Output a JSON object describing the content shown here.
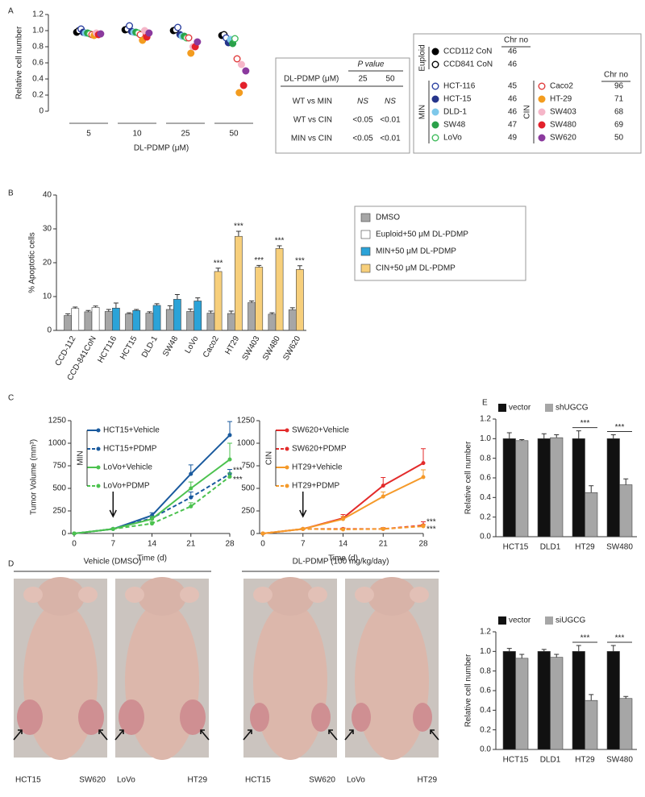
{
  "chart_data": [
    {
      "type": "dot",
      "label": "A",
      "ylabel": "Relative cell number",
      "xlabel": "DL-PDMP (μM)",
      "categories": [
        5,
        10,
        25,
        50
      ],
      "ylim": [
        0,
        1.2
      ],
      "yticks": [
        0,
        0.2,
        0.4,
        0.6,
        0.8,
        {
          "value": 1,
          "label": "1.0"
        },
        1.2
      ],
      "groups": [
        "Euploid",
        "MIN",
        "CIN"
      ],
      "chr_no_label": "Chr no",
      "series": [
        {
          "name": "CCD112 CoN",
          "group": 0,
          "color": "#000000",
          "marker": "filled",
          "chr_no": 46,
          "values": [
            0.98,
            1.01,
            1.0,
            0.94
          ]
        },
        {
          "name": "CCD841 CoN",
          "group": 0,
          "color": "#000000",
          "marker": "open",
          "chr_no": 46,
          "values": [
            1.0,
            1.02,
            1.01,
            0.95
          ]
        },
        {
          "name": "HCT-116",
          "group": 1,
          "color": "#2a3fa0",
          "marker": "open",
          "chr_no": 45,
          "values": [
            1.02,
            1.06,
            1.04,
            0.91
          ]
        },
        {
          "name": "HCT-15",
          "group": 1,
          "color": "#26358b",
          "marker": "filled",
          "chr_no": 46,
          "values": [
            0.98,
            0.99,
            0.95,
            0.85
          ]
        },
        {
          "name": "DLD-1",
          "group": 1,
          "color": "#7ec8ea",
          "marker": "filled",
          "chr_no": 46,
          "values": [
            0.97,
            0.98,
            0.93,
            0.89
          ]
        },
        {
          "name": "SW48",
          "group": 1,
          "color": "#2aa14a",
          "marker": "filled",
          "chr_no": 47,
          "values": [
            0.97,
            0.98,
            0.93,
            0.84
          ]
        },
        {
          "name": "LoVo",
          "group": 1,
          "color": "#3dbb5a",
          "marker": "open",
          "chr_no": 49,
          "values": [
            0.96,
            0.97,
            0.91,
            0.9
          ]
        },
        {
          "name": "Caco2",
          "group": 2,
          "color": "#e03a3a",
          "marker": "open",
          "chr_no": 96,
          "values": [
            0.95,
            0.95,
            0.91,
            0.65
          ]
        },
        {
          "name": "HT-29",
          "group": 2,
          "color": "#f39c1f",
          "marker": "filled",
          "chr_no": 71,
          "values": [
            0.94,
            0.88,
            0.72,
            0.23
          ]
        },
        {
          "name": "SW403",
          "group": 2,
          "color": "#f5b6c8",
          "marker": "filled",
          "chr_no": 68,
          "values": [
            0.97,
            1.0,
            0.8,
            0.58
          ]
        },
        {
          "name": "SW480",
          "group": 2,
          "color": "#e3212b",
          "marker": "filled",
          "chr_no": 69,
          "values": [
            0.95,
            0.92,
            0.8,
            0.32
          ]
        },
        {
          "name": "SW620",
          "group": 2,
          "color": "#8b3a9e",
          "marker": "filled",
          "chr_no": 50,
          "values": [
            0.96,
            0.97,
            0.86,
            0.5
          ]
        }
      ]
    },
    {
      "type": "bar",
      "label": "B",
      "ylabel": "% Apoptotic cells",
      "legend": "right",
      "xtick_rotation": 60,
      "categories": [
        "CCD-112",
        "CCD-841CoN",
        "HCT116",
        "HCT15",
        "DLD-1",
        "SW48",
        "LoVo",
        "Caco2",
        "HT29",
        "SW403",
        "SW480",
        "SW620"
      ],
      "ylim": [
        0,
        40
      ],
      "yticks": [
        0,
        10,
        20,
        30,
        40
      ],
      "significance": [
        null,
        null,
        null,
        null,
        null,
        null,
        null,
        "***",
        "***",
        "***",
        "***",
        "***"
      ],
      "series": [
        {
          "name": "DMSO",
          "color": "#a6a6a6",
          "values": [
            4.4,
            5.5,
            5.6,
            4.9,
            5.1,
            6.2,
            5.6,
            5.1,
            5.0,
            8.2,
            4.8,
            6.1
          ],
          "errors": [
            0.5,
            0.4,
            0.6,
            0.3,
            0.4,
            1.1,
            0.7,
            0.6,
            0.7,
            0.5,
            0.4,
            0.6
          ]
        },
        {
          "name": "Euploid+50 μM DL-PDMP",
          "color": "#ffffff",
          "values": [
            6.5,
            6.8,
            null,
            null,
            null,
            null,
            null,
            null,
            null,
            null,
            null,
            null
          ],
          "errors": [
            0.4,
            0.4,
            null,
            null,
            null,
            null,
            null,
            null,
            null,
            null,
            null,
            null
          ]
        },
        {
          "name": "MIN+50 μM DL-PDMP",
          "color": "#2ba3d8",
          "values": [
            null,
            null,
            6.6,
            5.9,
            7.4,
            9.2,
            8.7,
            null,
            null,
            null,
            null,
            null
          ],
          "errors": [
            null,
            null,
            1.5,
            0.3,
            0.5,
            1.4,
            0.9,
            null,
            null,
            null,
            null,
            null
          ]
        },
        {
          "name": "CIN+50 μM DL-PDMP",
          "color": "#f7cf7b",
          "values": [
            null,
            null,
            null,
            null,
            null,
            null,
            null,
            17.4,
            27.8,
            18.7,
            24.2,
            18.0
          ],
          "errors": [
            null,
            null,
            null,
            null,
            null,
            null,
            null,
            1.0,
            1.5,
            0.5,
            0.8,
            1.1
          ]
        }
      ]
    },
    {
      "type": "line",
      "label": "C",
      "ylabel": "Tumor Volume (mm³)",
      "xlabel": "Time (d)",
      "group": "MIN",
      "group_color": "#2a4fa0",
      "arrow_at": 7,
      "x": [
        0,
        7,
        14,
        21,
        28
      ],
      "xlim": [
        0,
        28
      ],
      "xticks": [
        0,
        7,
        14,
        21,
        28
      ],
      "ylim": [
        0,
        1250
      ],
      "yticks": [
        0,
        250,
        500,
        750,
        1000,
        1250
      ],
      "series": [
        {
          "name": "HCT15+Vehicle",
          "color": "#1a5a9e",
          "dashed": false,
          "values": [
            0,
            50,
            200,
            660,
            1090
          ],
          "errors": [
            0,
            5,
            30,
            100,
            150
          ]
        },
        {
          "name": "HCT15+PDMP",
          "color": "#1a5a9e",
          "dashed": true,
          "annotation": "***",
          "values": [
            0,
            50,
            170,
            400,
            660
          ],
          "errors": [
            0,
            5,
            25,
            60,
            50
          ]
        },
        {
          "name": "LoVo+Vehicle",
          "color": "#4cc24f",
          "dashed": false,
          "values": [
            0,
            50,
            160,
            500,
            820
          ],
          "errors": [
            0,
            5,
            30,
            70,
            180
          ]
        },
        {
          "name": "LoVo+PDMP",
          "color": "#4cc24f",
          "dashed": true,
          "annotation": "***",
          "values": [
            0,
            50,
            110,
            300,
            630
          ],
          "errors": [
            0,
            5,
            20,
            40,
            40
          ]
        }
      ]
    },
    {
      "type": "line",
      "xlabel": "Time (d)",
      "group": "CIN",
      "group_color": "#e32b2b",
      "arrow_at": 7,
      "x": [
        0,
        7,
        14,
        21,
        28
      ],
      "xlim": [
        0,
        28
      ],
      "xticks": [
        0,
        7,
        14,
        21,
        28
      ],
      "ylim": [
        0,
        1250
      ],
      "yticks": [
        0,
        250,
        500,
        750,
        1000,
        1250
      ],
      "series": [
        {
          "name": "SW620+Vehicle",
          "color": "#e32b2b",
          "dashed": false,
          "values": [
            0,
            50,
            170,
            530,
            780
          ],
          "errors": [
            0,
            5,
            40,
            90,
            160
          ]
        },
        {
          "name": "SW620+PDMP",
          "color": "#e32b2b",
          "dashed": true,
          "annotation": "***",
          "values": [
            0,
            50,
            50,
            50,
            90
          ],
          "errors": [
            0,
            5,
            10,
            15,
            40
          ]
        },
        {
          "name": "HT29+Vehicle",
          "color": "#f59a2a",
          "dashed": false,
          "values": [
            0,
            50,
            160,
            410,
            625
          ],
          "errors": [
            0,
            5,
            30,
            50,
            80
          ]
        },
        {
          "name": "HT29+PDMP",
          "color": "#f59a2a",
          "dashed": true,
          "annotation": "***",
          "values": [
            0,
            50,
            45,
            50,
            80
          ],
          "errors": [
            0,
            5,
            10,
            10,
            20
          ]
        }
      ]
    },
    {
      "type": "bar",
      "label": "E",
      "ylabel": "Relative cell number",
      "legend": "top",
      "significance_bracket": true,
      "categories": [
        "HCT15",
        "DLD1",
        "HT29",
        "SW480"
      ],
      "ylim": [
        0,
        1.2
      ],
      "yticks": [
        {
          "value": 0,
          "label": "0.0"
        },
        0.2,
        0.4,
        0.6,
        0.8,
        {
          "value": 1,
          "label": "1.0"
        },
        1.2
      ],
      "significance": [
        null,
        null,
        "***",
        "***"
      ],
      "series": [
        {
          "name": "vector",
          "color": "#111111",
          "values": [
            1.0,
            1.0,
            1.0,
            1.0
          ],
          "errors": [
            0.06,
            0.05,
            0.08,
            0.04
          ]
        },
        {
          "name": "shUGCG",
          "color": "#a6a6a6",
          "values": [
            0.98,
            1.01,
            0.45,
            0.53
          ],
          "errors": [
            0.01,
            0.03,
            0.07,
            0.06
          ]
        }
      ]
    },
    {
      "type": "bar",
      "ylabel": "Relative cell number",
      "legend": "top",
      "significance_bracket": true,
      "categories": [
        "HCT15",
        "DLD1",
        "HT29",
        "SW480"
      ],
      "ylim": [
        0,
        1.2
      ],
      "yticks": [
        {
          "value": 0,
          "label": "0.0"
        },
        0.2,
        0.4,
        0.6,
        0.8,
        {
          "value": 1,
          "label": "1.0"
        },
        1.2
      ],
      "significance": [
        null,
        null,
        "***",
        "***"
      ],
      "series": [
        {
          "name": "vector",
          "color": "#111111",
          "values": [
            1.0,
            1.0,
            1.0,
            1.0
          ],
          "errors": [
            0.03,
            0.02,
            0.06,
            0.06
          ]
        },
        {
          "name": "siUGCG",
          "color": "#a6a6a6",
          "values": [
            0.93,
            0.94,
            0.5,
            0.52
          ],
          "errors": [
            0.04,
            0.03,
            0.06,
            0.02
          ]
        }
      ]
    }
  ],
  "pvalue_table": {
    "title": "P value",
    "header": [
      "DL-PDMP (μM)",
      25,
      50
    ],
    "rows": [
      [
        "WT vs MIN",
        "NS",
        "NS"
      ],
      [
        "WT vs CIN",
        "<0.05",
        "<0.01"
      ],
      [
        "MIN vs CIN",
        "<0.05",
        "<0.01"
      ]
    ]
  },
  "photos": {
    "label": "D",
    "headers": [
      "Vehicle (DMSO)",
      "DL-PDMP (100 mg/kg/day)"
    ],
    "mice": [
      {
        "left": "HCT15",
        "right": "SW620"
      },
      {
        "left": "LoVo",
        "right": "HT29"
      },
      {
        "left": "HCT15",
        "right": "SW620"
      },
      {
        "left": "LoVo",
        "right": "HT29"
      }
    ]
  }
}
